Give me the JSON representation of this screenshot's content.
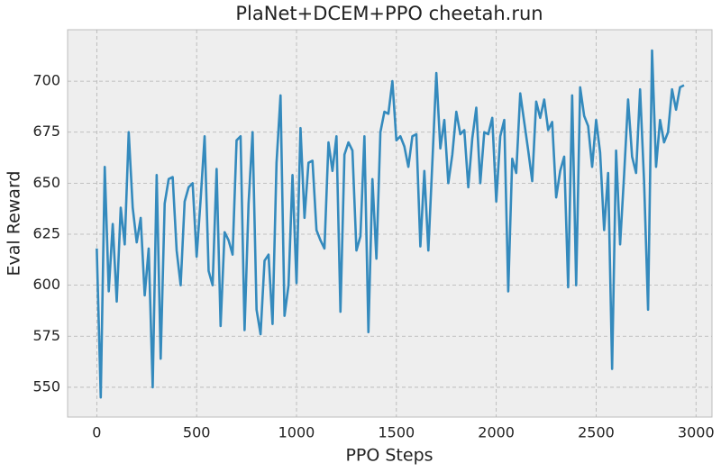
{
  "chart_data": {
    "type": "line",
    "title": "PlaNet+DCEM+PPO cheetah.run",
    "x_label": "PPO Steps",
    "y_label": "Eval Reward",
    "xlim": [
      -146,
      3080
    ],
    "ylim": [
      535.4,
      725.2
    ],
    "xticks": [
      0,
      500,
      1000,
      1500,
      2000,
      2500,
      3000
    ],
    "yticks": [
      550,
      575,
      600,
      625,
      650,
      675,
      700
    ],
    "grid": true,
    "x": [
      0,
      20,
      40,
      60,
      80,
      100,
      120,
      140,
      160,
      180,
      200,
      220,
      240,
      260,
      280,
      300,
      320,
      340,
      360,
      380,
      400,
      420,
      440,
      460,
      480,
      500,
      520,
      540,
      560,
      580,
      600,
      620,
      640,
      660,
      680,
      700,
      720,
      740,
      760,
      780,
      800,
      820,
      840,
      860,
      880,
      900,
      920,
      940,
      960,
      980,
      1000,
      1020,
      1040,
      1060,
      1080,
      1100,
      1120,
      1140,
      1160,
      1180,
      1200,
      1220,
      1240,
      1260,
      1280,
      1300,
      1320,
      1340,
      1360,
      1380,
      1400,
      1420,
      1440,
      1460,
      1480,
      1500,
      1520,
      1540,
      1560,
      1580,
      1600,
      1620,
      1640,
      1660,
      1680,
      1700,
      1720,
      1740,
      1760,
      1780,
      1800,
      1820,
      1840,
      1860,
      1880,
      1900,
      1920,
      1940,
      1960,
      1980,
      2000,
      2020,
      2040,
      2060,
      2080,
      2100,
      2120,
      2140,
      2160,
      2180,
      2200,
      2220,
      2240,
      2260,
      2280,
      2300,
      2320,
      2340,
      2360,
      2380,
      2400,
      2420,
      2440,
      2460,
      2480,
      2500,
      2520,
      2540,
      2560,
      2580,
      2600,
      2620,
      2640,
      2660,
      2680,
      2700,
      2720,
      2740,
      2760,
      2780,
      2800,
      2820,
      2840,
      2860,
      2880,
      2900,
      2920,
      2940
    ],
    "series": [
      {
        "color": "#348abd",
        "values": [
          618,
          545,
          658,
          597,
          630,
          592,
          638,
          620,
          675,
          638,
          621,
          633,
          595,
          618,
          550,
          654,
          564,
          640,
          652,
          653,
          617,
          600,
          641,
          648,
          650,
          614,
          642,
          673,
          607,
          600,
          657,
          580,
          626,
          622,
          615,
          671,
          673,
          578,
          640,
          675,
          588,
          576,
          612,
          615,
          581,
          660,
          693,
          585,
          600,
          654,
          601,
          677,
          633,
          660,
          661,
          627,
          622,
          618,
          670,
          656,
          673,
          587,
          664,
          670,
          666,
          617,
          624,
          673,
          577,
          652,
          613,
          675,
          685,
          684,
          700,
          671,
          673,
          668,
          658,
          673,
          674,
          619,
          656,
          617,
          660,
          704,
          667,
          681,
          650,
          664,
          685,
          674,
          676,
          648,
          672,
          687,
          650,
          675,
          674,
          682,
          641,
          673,
          681,
          597,
          662,
          655,
          694,
          680,
          666,
          651,
          690,
          682,
          691,
          676,
          680,
          643,
          656,
          663,
          599,
          693,
          600,
          697,
          683,
          678,
          658,
          681,
          665,
          627,
          655,
          559,
          666,
          620,
          654,
          691,
          663,
          655,
          696,
          651,
          588,
          715,
          658,
          681,
          670,
          675,
          696,
          686,
          697,
          698
        ]
      }
    ]
  }
}
